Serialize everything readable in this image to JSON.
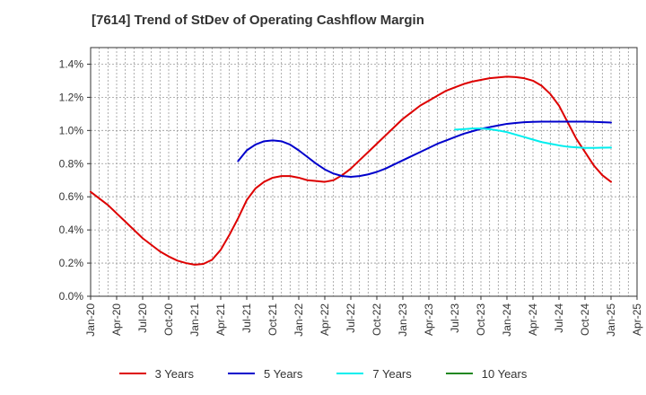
{
  "chart_data": {
    "type": "line",
    "title": "[7614]  Trend of StDev of Operating Cashflow Margin",
    "xlabel": "",
    "ylabel": "",
    "x_ticks": [
      "Jan-20",
      "Apr-20",
      "Jul-20",
      "Oct-20",
      "Jan-21",
      "Apr-21",
      "Jul-21",
      "Oct-21",
      "Jan-22",
      "Apr-22",
      "Jul-22",
      "Oct-22",
      "Jan-23",
      "Apr-23",
      "Jul-23",
      "Oct-23",
      "Jan-24",
      "Apr-24",
      "Jul-24",
      "Oct-24",
      "Jan-25",
      "Apr-25"
    ],
    "y_ticks": [
      "0.0%",
      "0.2%",
      "0.4%",
      "0.6%",
      "0.8%",
      "1.0%",
      "1.2%",
      "1.4%"
    ],
    "ylim": [
      0,
      1.5
    ],
    "grid": true,
    "legend_position": "bottom",
    "series": [
      {
        "name": "3 Years",
        "color": "#dd0000",
        "points": [
          [
            "Jan-20",
            0.63
          ],
          [
            "Feb-20",
            0.59
          ],
          [
            "Mar-20",
            0.55
          ],
          [
            "Apr-20",
            0.5
          ],
          [
            "May-20",
            0.45
          ],
          [
            "Jun-20",
            0.4
          ],
          [
            "Jul-20",
            0.35
          ],
          [
            "Aug-20",
            0.31
          ],
          [
            "Sep-20",
            0.27
          ],
          [
            "Oct-20",
            0.24
          ],
          [
            "Nov-20",
            0.215
          ],
          [
            "Dec-20",
            0.2
          ],
          [
            "Jan-21",
            0.19
          ],
          [
            "Feb-21",
            0.195
          ],
          [
            "Mar-21",
            0.22
          ],
          [
            "Apr-21",
            0.28
          ],
          [
            "May-21",
            0.37
          ],
          [
            "Jun-21",
            0.47
          ],
          [
            "Jul-21",
            0.58
          ],
          [
            "Aug-21",
            0.65
          ],
          [
            "Sep-21",
            0.69
          ],
          [
            "Oct-21",
            0.715
          ],
          [
            "Nov-21",
            0.725
          ],
          [
            "Dec-21",
            0.725
          ],
          [
            "Jan-22",
            0.715
          ],
          [
            "Feb-22",
            0.7
          ],
          [
            "Mar-22",
            0.695
          ],
          [
            "Apr-22",
            0.69
          ],
          [
            "May-22",
            0.7
          ],
          [
            "Jun-22",
            0.73
          ],
          [
            "Jul-22",
            0.77
          ],
          [
            "Aug-22",
            0.82
          ],
          [
            "Sep-22",
            0.87
          ],
          [
            "Oct-22",
            0.92
          ],
          [
            "Nov-22",
            0.97
          ],
          [
            "Dec-22",
            1.02
          ],
          [
            "Jan-23",
            1.07
          ],
          [
            "Feb-23",
            1.11
          ],
          [
            "Mar-23",
            1.15
          ],
          [
            "Apr-23",
            1.18
          ],
          [
            "May-23",
            1.21
          ],
          [
            "Jun-23",
            1.24
          ],
          [
            "Jul-23",
            1.26
          ],
          [
            "Aug-23",
            1.28
          ],
          [
            "Sep-23",
            1.295
          ],
          [
            "Oct-23",
            1.305
          ],
          [
            "Nov-23",
            1.315
          ],
          [
            "Dec-23",
            1.32
          ],
          [
            "Jan-24",
            1.325
          ],
          [
            "Feb-24",
            1.322
          ],
          [
            "Mar-24",
            1.315
          ],
          [
            "Apr-24",
            1.3
          ],
          [
            "May-24",
            1.27
          ],
          [
            "Jun-24",
            1.22
          ],
          [
            "Jul-24",
            1.15
          ],
          [
            "Aug-24",
            1.05
          ],
          [
            "Sep-24",
            0.95
          ],
          [
            "Oct-24",
            0.87
          ],
          [
            "Nov-24",
            0.79
          ],
          [
            "Dec-24",
            0.73
          ],
          [
            "Jan-25",
            0.69
          ]
        ]
      },
      {
        "name": "5 Years",
        "color": "#0000cc",
        "points": [
          [
            "Jun-21",
            0.815
          ],
          [
            "Jul-21",
            0.88
          ],
          [
            "Aug-21",
            0.915
          ],
          [
            "Sep-21",
            0.935
          ],
          [
            "Oct-21",
            0.94
          ],
          [
            "Nov-21",
            0.935
          ],
          [
            "Dec-21",
            0.915
          ],
          [
            "Jan-22",
            0.88
          ],
          [
            "Feb-22",
            0.84
          ],
          [
            "Mar-22",
            0.8
          ],
          [
            "Apr-22",
            0.765
          ],
          [
            "May-22",
            0.74
          ],
          [
            "Jun-22",
            0.725
          ],
          [
            "Jul-22",
            0.72
          ],
          [
            "Aug-22",
            0.725
          ],
          [
            "Sep-22",
            0.735
          ],
          [
            "Oct-22",
            0.75
          ],
          [
            "Nov-22",
            0.77
          ],
          [
            "Dec-22",
            0.795
          ],
          [
            "Jan-23",
            0.82
          ],
          [
            "Feb-23",
            0.845
          ],
          [
            "Mar-23",
            0.87
          ],
          [
            "Apr-23",
            0.895
          ],
          [
            "May-23",
            0.92
          ],
          [
            "Jun-23",
            0.94
          ],
          [
            "Jul-23",
            0.96
          ],
          [
            "Aug-23",
            0.98
          ],
          [
            "Sep-23",
            0.995
          ],
          [
            "Oct-23",
            1.01
          ],
          [
            "Nov-23",
            1.02
          ],
          [
            "Dec-23",
            1.03
          ],
          [
            "Jan-24",
            1.04
          ],
          [
            "Feb-24",
            1.045
          ],
          [
            "Mar-24",
            1.05
          ],
          [
            "Apr-24",
            1.052
          ],
          [
            "May-24",
            1.053
          ],
          [
            "Jun-24",
            1.053
          ],
          [
            "Jul-24",
            1.053
          ],
          [
            "Aug-24",
            1.053
          ],
          [
            "Sep-24",
            1.053
          ],
          [
            "Oct-24",
            1.053
          ],
          [
            "Nov-24",
            1.052
          ],
          [
            "Dec-24",
            1.05
          ],
          [
            "Jan-25",
            1.048
          ]
        ]
      },
      {
        "name": "7 Years",
        "color": "#00eeee",
        "points": [
          [
            "Jul-23",
            1.005
          ],
          [
            "Aug-23",
            1.008
          ],
          [
            "Sep-23",
            1.012
          ],
          [
            "Oct-23",
            1.012
          ],
          [
            "Nov-23",
            1.008
          ],
          [
            "Dec-23",
            1.0
          ],
          [
            "Jan-24",
            0.99
          ],
          [
            "Feb-24",
            0.975
          ],
          [
            "Mar-24",
            0.96
          ],
          [
            "Apr-24",
            0.945
          ],
          [
            "May-24",
            0.93
          ],
          [
            "Jun-24",
            0.92
          ],
          [
            "Jul-24",
            0.91
          ],
          [
            "Aug-24",
            0.902
          ],
          [
            "Sep-24",
            0.898
          ],
          [
            "Oct-24",
            0.895
          ],
          [
            "Nov-24",
            0.895
          ],
          [
            "Dec-24",
            0.896
          ],
          [
            "Jan-25",
            0.897
          ]
        ]
      },
      {
        "name": "10 Years",
        "color": "#228822",
        "points": []
      }
    ]
  }
}
